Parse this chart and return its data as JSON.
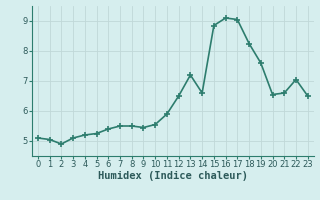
{
  "x": [
    0,
    1,
    2,
    3,
    4,
    5,
    6,
    7,
    8,
    9,
    10,
    11,
    12,
    13,
    14,
    15,
    16,
    17,
    18,
    19,
    20,
    21,
    22,
    23
  ],
  "y": [
    5.1,
    5.05,
    4.9,
    5.1,
    5.2,
    5.25,
    5.4,
    5.5,
    5.5,
    5.45,
    5.55,
    5.9,
    6.5,
    7.2,
    6.6,
    8.85,
    9.1,
    9.05,
    8.25,
    7.6,
    6.55,
    6.6,
    7.05,
    6.5
  ],
  "line_color": "#2d7d6e",
  "marker": "+",
  "marker_size": 4.0,
  "line_width": 1.2,
  "background_color": "#d6eeee",
  "grid_color": "#c0d8d8",
  "xlabel": "Humidex (Indice chaleur)",
  "xlabel_fontsize": 7.5,
  "xlim": [
    -0.5,
    23.5
  ],
  "ylim": [
    4.5,
    9.5
  ],
  "yticks": [
    5,
    6,
    7,
    8,
    9
  ],
  "xticks": [
    0,
    1,
    2,
    3,
    4,
    5,
    6,
    7,
    8,
    9,
    10,
    11,
    12,
    13,
    14,
    15,
    16,
    17,
    18,
    19,
    20,
    21,
    22,
    23
  ],
  "tick_fontsize": 6.0
}
